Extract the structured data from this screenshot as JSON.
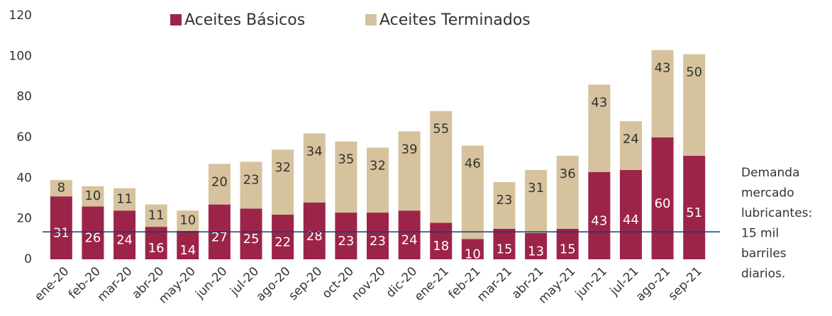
{
  "chart_data": {
    "type": "stacked_bar",
    "categories": [
      "ene-20",
      "feb-20",
      "mar-20",
      "abr-20",
      "may-20",
      "jun-20",
      "jul-20",
      "ago-20",
      "sep-20",
      "oct-20",
      "nov-20",
      "dic-20",
      "ene-21",
      "feb-21",
      "mar-21",
      "abr-21",
      "may-21",
      "jun-21",
      "jul-21",
      "ago-21",
      "sep-21"
    ],
    "series": [
      {
        "name": "Aceites Básicos",
        "color": "#9d2449",
        "values": [
          31,
          26,
          24,
          16,
          14,
          27,
          25,
          22,
          28,
          23,
          23,
          24,
          18,
          10,
          15,
          13,
          15,
          43,
          44,
          60,
          51
        ]
      },
      {
        "name": "Aceites Terminados",
        "color": "#d6c29d",
        "values": [
          8,
          10,
          11,
          11,
          10,
          20,
          23,
          32,
          34,
          35,
          32,
          39,
          55,
          46,
          23,
          31,
          36,
          43,
          24,
          43,
          50
        ]
      }
    ],
    "ylim": [
      0,
      120
    ],
    "yticks": [
      0,
      20,
      40,
      60,
      80,
      100,
      120
    ],
    "grid": false,
    "reference_line": {
      "value": 13.5,
      "color": "#1f3a6e"
    },
    "annotation": [
      "Demanda",
      "mercado",
      "lubricantes:",
      "15 mil",
      "barriles",
      "diarios."
    ]
  }
}
